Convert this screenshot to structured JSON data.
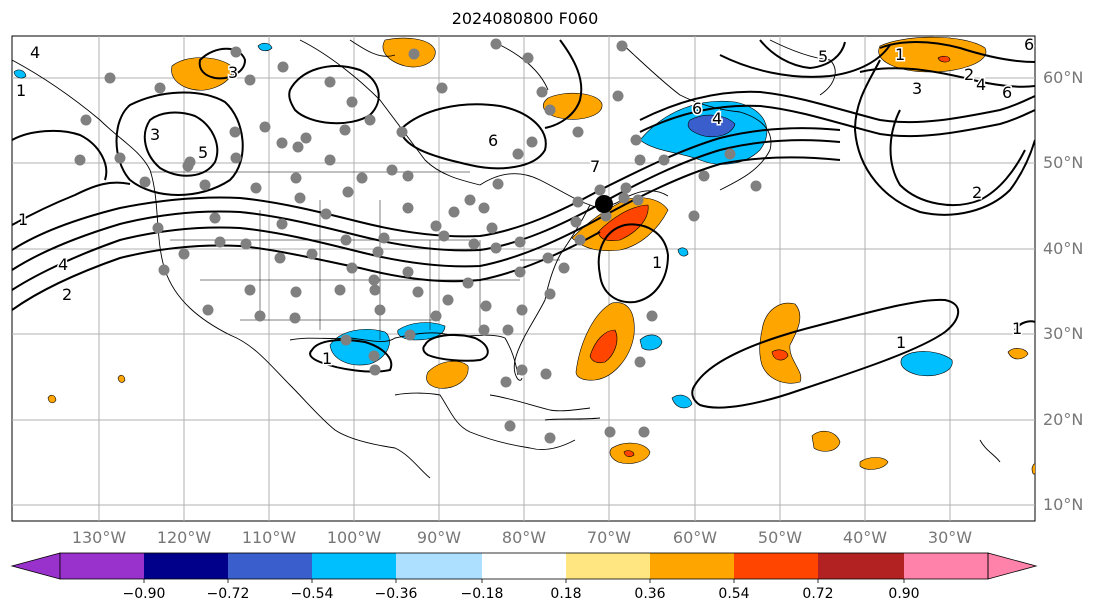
{
  "title": "2024080800 F060",
  "lat_labels": [
    "60°N",
    "50°N",
    "40°N",
    "30°N",
    "20°N",
    "10°N"
  ],
  "lon_labels": [
    "130°W",
    "120°W",
    "110°W",
    "100°W",
    "90°W",
    "80°W",
    "70°W",
    "60°W",
    "50°W",
    "40°W",
    "30°W"
  ],
  "contour_labels": [
    "1",
    "2",
    "3",
    "4",
    "5",
    "6",
    "7",
    "1",
    "2",
    "1",
    "1",
    "1",
    "1",
    "6",
    "3",
    "4",
    "6",
    "2",
    "4",
    "1",
    "3",
    "4",
    "5",
    "6"
  ],
  "colorbar": {
    "ticks": [
      "−0.90",
      "−0.72",
      "−0.54",
      "−0.36",
      "−0.18",
      "0.18",
      "0.36",
      "0.54",
      "0.72",
      "0.90"
    ],
    "colors": [
      "#9932CC",
      "#00008B",
      "#3A5FCD",
      "#00BFFF",
      "#ADDFFF",
      "#FFFFFF",
      "#FFE680",
      "#FFA500",
      "#FF4500",
      "#B22222",
      "#FF82AB"
    ],
    "under_color": "#9932CC",
    "over_color": "#FF82AB"
  },
  "marker_color": "#000000",
  "station_color": "#808080"
}
